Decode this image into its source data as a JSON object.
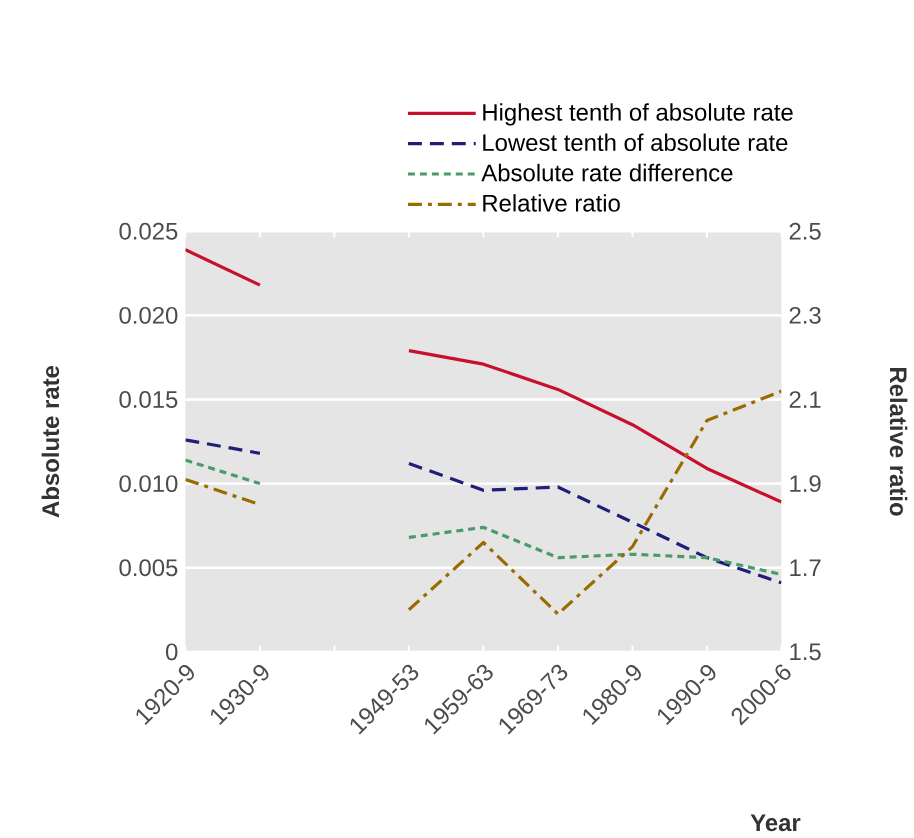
{
  "chart_data": {
    "type": "line",
    "categories": [
      "1920-9",
      "1930-9",
      null,
      "1949-53",
      "1959-63",
      "1969-73",
      "1980-9",
      "1990-9",
      "2000-6"
    ],
    "series": [
      {
        "name": "Highest tenth of absolute rate",
        "color": "#c8102e",
        "line_style": "solid",
        "values": [
          0.0239,
          0.0218,
          null,
          0.0179,
          0.0171,
          0.0156,
          0.0135,
          0.0109,
          0.0089
        ]
      },
      {
        "name": "Lowest tenth of absolute rate",
        "color": "#1f1f7a",
        "line_style": "dashed",
        "values": [
          0.0126,
          0.0118,
          null,
          0.0112,
          0.0096,
          0.0098,
          0.0077,
          0.0056,
          0.0041
        ]
      },
      {
        "name": "Absolute rate difference",
        "color": "#4a9a6a",
        "line_style": "dotted",
        "values": [
          0.0114,
          0.01,
          null,
          0.0068,
          0.0074,
          0.0056,
          0.0058,
          0.0056,
          0.0046
        ]
      },
      {
        "name": "Relative ratio",
        "color": "#9a6b00",
        "line_style": "dashdot",
        "axis": "y2",
        "values": [
          1.91,
          1.85,
          null,
          1.6,
          1.76,
          1.59,
          1.75,
          2.05,
          2.12
        ]
      }
    ],
    "xlabel": "Year",
    "ylabel": "Absolute rate",
    "y2label": "Relative ratio",
    "ylim": [
      0,
      0.025
    ],
    "yticks": [
      {
        "value": 0,
        "label": "0"
      },
      0.005,
      {
        "value": 0.01,
        "label": "0.010"
      },
      0.015,
      {
        "value": 0.02,
        "label": "0.020"
      },
      0.025
    ],
    "y2lim": [
      1.5,
      2.5
    ],
    "y2ticks": [
      1.5,
      1.7,
      1.9,
      2.1,
      2.3,
      2.5
    ],
    "grid": "y",
    "legend": "top",
    "marker": "none"
  }
}
